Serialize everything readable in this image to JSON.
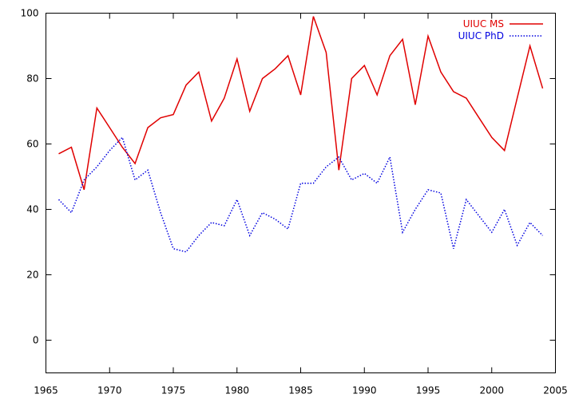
{
  "chart_data": {
    "type": "line",
    "title": "",
    "xlabel": "",
    "ylabel": "",
    "xlim": [
      1965,
      2005
    ],
    "ylim": [
      -10,
      100
    ],
    "xticks": [
      1965,
      1970,
      1975,
      1980,
      1985,
      1990,
      1995,
      2000,
      2005
    ],
    "yticks": [
      0,
      20,
      40,
      60,
      80,
      100
    ],
    "grid": false,
    "legend_position": "top-right",
    "x": [
      1966,
      1967,
      1968,
      1969,
      1970,
      1971,
      1972,
      1973,
      1974,
      1975,
      1976,
      1977,
      1978,
      1979,
      1980,
      1981,
      1982,
      1983,
      1984,
      1985,
      1986,
      1987,
      1988,
      1989,
      1990,
      1991,
      1992,
      1993,
      1994,
      1995,
      1996,
      1997,
      1998,
      1999,
      2000,
      2001,
      2002,
      2003,
      2004
    ],
    "series": [
      {
        "name": "UIUC MS",
        "color": "#e00000",
        "dash": "solid",
        "values": [
          57,
          59,
          46,
          71,
          65,
          59,
          54,
          65,
          68,
          69,
          78,
          82,
          67,
          74,
          86,
          70,
          80,
          83,
          87,
          75,
          99,
          88,
          52,
          80,
          84,
          75,
          87,
          92,
          72,
          93,
          82,
          76,
          74,
          68,
          62,
          58,
          74,
          90,
          77
        ]
      },
      {
        "name": "UIUC PhD",
        "color": "#0000e0",
        "dash": "dotted",
        "values": [
          43,
          39,
          49,
          53,
          58,
          62,
          49,
          52,
          39,
          28,
          27,
          32,
          36,
          35,
          43,
          32,
          39,
          37,
          34,
          48,
          48,
          53,
          56,
          49,
          51,
          48,
          56,
          33,
          40,
          46,
          45,
          28,
          43,
          38,
          33,
          40,
          29,
          36,
          32
        ]
      }
    ]
  }
}
